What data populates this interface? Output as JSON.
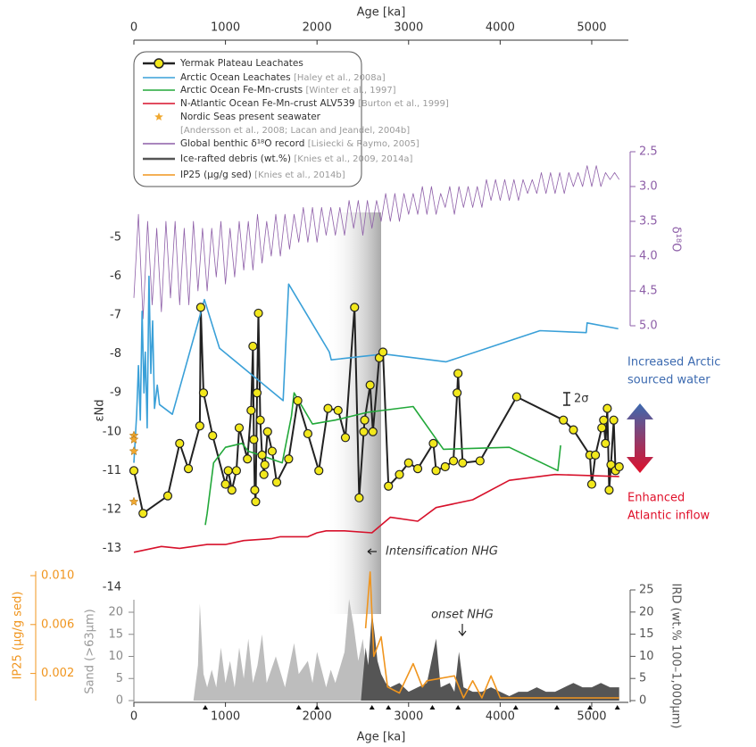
{
  "chart_data": [
    {
      "type": "line",
      "x_label": "Age [ka]",
      "xlim": [
        0,
        5400
      ],
      "xticks": [
        0,
        1000,
        2000,
        3000,
        4000,
        5000
      ],
      "y_label": "εNd",
      "ylim": [
        -14,
        -5
      ],
      "yticks": [
        -5,
        -6,
        -7,
        -8,
        -9,
        -10,
        -11,
        -12,
        -13,
        -14
      ],
      "y2_label": "δ¹⁸O",
      "y2lim": [
        5,
        2.5
      ],
      "y2ticks": [
        2.5,
        {
          "value": 3,
          "label": "3.0"
        },
        3.5,
        {
          "value": 4,
          "label": "4.0"
        },
        4.5,
        {
          "value": 5,
          "label": "5.0"
        }
      ],
      "grid": false,
      "highlight": [
        2100,
        2700
      ],
      "annotation": "Intensification NHG",
      "error_label": "2σ",
      "arctic_label": [
        "Increased Arctic",
        "sourced water"
      ],
      "atlantic_label": [
        "Enhanced",
        "Atlantic inflow"
      ],
      "series": [
        {
          "name": "Yermak Plateau Leachates",
          "color": "#222222",
          "marker": "circle",
          "marker_color": "#f2e81c",
          "x": [
            0,
            100,
            370,
            500,
            595,
            720,
            730,
            760,
            860,
            1000,
            1030,
            1070,
            1120,
            1150,
            1240,
            1280,
            1300,
            1310,
            1320,
            1330,
            1345,
            1360,
            1380,
            1400,
            1420,
            1430,
            1460,
            1510,
            1560,
            1690,
            1790,
            1900,
            2020,
            2120,
            2230,
            2310,
            2410,
            2460,
            2510,
            2520,
            2580,
            2610,
            2680,
            2720,
            2780,
            2900,
            3000,
            3100,
            3270,
            3300,
            3400,
            3490,
            3530,
            3540,
            3590,
            3780,
            4180,
            4690,
            4800,
            4980,
            5000,
            5040,
            5110,
            5130,
            5150,
            5170,
            5190,
            5210,
            5240,
            5260,
            5300
          ],
          "values": [
            -11.0,
            -12.1,
            -11.65,
            -10.3,
            -10.95,
            -9.85,
            -6.8,
            -9.0,
            -10.1,
            -11.35,
            -11.0,
            -11.5,
            -11.0,
            -9.9,
            -10.7,
            -9.45,
            -7.8,
            -10.2,
            -11.5,
            -11.8,
            -9.0,
            -6.95,
            -9.7,
            -10.6,
            -11.1,
            -10.85,
            -10.0,
            -10.5,
            -11.3,
            -10.7,
            -9.2,
            -10.05,
            -11.0,
            -9.4,
            -9.45,
            -10.15,
            -6.8,
            -11.7,
            -10.0,
            -9.7,
            -8.8,
            -10.0,
            -8.1,
            -7.95,
            -11.4,
            -11.1,
            -10.8,
            -10.95,
            -10.3,
            -11.0,
            -10.9,
            -10.75,
            -9.0,
            -8.5,
            -10.8,
            -10.75,
            -9.1,
            -9.7,
            -9.95,
            -10.6,
            -11.35,
            -10.6,
            -9.9,
            -9.7,
            -10.3,
            -9.4,
            -11.5,
            -10.85,
            -9.7,
            -11.0,
            -10.9
          ]
        },
        {
          "name": "Arctic Ocean Leachates",
          "ref": "[Haley et al., 2008a]",
          "color": "#3aa0d8",
          "x": [
            0,
            30,
            50,
            70,
            90,
            110,
            125,
            145,
            165,
            185,
            205,
            225,
            255,
            280,
            420,
            770,
            935,
            1630,
            1690,
            2135,
            2155,
            2730,
            3410,
            4435,
            4940,
            4950,
            5290
          ],
          "values": [
            -10.8,
            -9.55,
            -8.3,
            -9.7,
            -6.9,
            -9.0,
            -7.95,
            -9.9,
            -6.0,
            -8.5,
            -7.15,
            -9.4,
            -8.8,
            -9.3,
            -9.55,
            -6.6,
            -7.85,
            -9.2,
            -6.2,
            -7.95,
            -8.15,
            -8.0,
            -8.2,
            -7.4,
            -7.45,
            -7.2,
            -7.35
          ]
        },
        {
          "name": "Arctic Ocean Fe-Mn-crusts",
          "ref": "[Winter et al., 1997]",
          "color": "#22a83a",
          "x": [
            780,
            800,
            870,
            1000,
            1180,
            1250,
            1380,
            1620,
            1720,
            1750,
            1950,
            2200,
            2550,
            3050,
            3380,
            4100,
            4630,
            4660
          ],
          "values": [
            -12.4,
            -12.1,
            -10.8,
            -10.4,
            -10.3,
            -10.5,
            -10.6,
            -10.8,
            -9.6,
            -9.0,
            -9.8,
            -9.7,
            -9.5,
            -9.35,
            -10.45,
            -10.4,
            -11.0,
            -10.35
          ]
        },
        {
          "name": "N-Atlantic Ocean Fe-Mn-crust ALV539",
          "ref": "[Burton et al., 1999]",
          "color": "#d7112b",
          "x": [
            0,
            300,
            500,
            800,
            1000,
            1200,
            1500,
            1600,
            1900,
            2000,
            2100,
            2300,
            2600,
            2800,
            3100,
            3300,
            3700,
            4100,
            4600,
            5300
          ],
          "values": [
            -13.1,
            -12.95,
            -13.0,
            -12.9,
            -12.9,
            -12.8,
            -12.75,
            -12.7,
            -12.7,
            -12.6,
            -12.55,
            -12.55,
            -12.6,
            -12.2,
            -12.3,
            -11.95,
            -11.75,
            -11.25,
            -11.1,
            -11.15
          ]
        },
        {
          "name": "Nordic Seas present seawater",
          "ref": "[Andersson et al., 2008; Lacan and Jeandel, 2004b]",
          "color": "#f0a830",
          "marker": "star",
          "line": false,
          "x": [
            0,
            0,
            0,
            0
          ],
          "values": [
            -10.1,
            -10.2,
            -10.5,
            -11.8
          ]
        },
        {
          "name": "Global benthic δ¹⁸O record",
          "ref": "[Lisiecki & Raymo, 2005]",
          "color": "#8e5fa8",
          "axis": "y2",
          "x": [
            0,
            50,
            100,
            150,
            200,
            250,
            300,
            350,
            400,
            450,
            500,
            550,
            600,
            650,
            700,
            750,
            800,
            850,
            900,
            950,
            1000,
            1050,
            1100,
            1150,
            1200,
            1250,
            1300,
            1350,
            1400,
            1450,
            1500,
            1550,
            1600,
            1650,
            1700,
            1750,
            1800,
            1850,
            1900,
            1950,
            2000,
            2050,
            2100,
            2150,
            2200,
            2250,
            2300,
            2350,
            2400,
            2450,
            2500,
            2550,
            2600,
            2650,
            2700,
            2750,
            2800,
            2850,
            2900,
            2950,
            3000,
            3050,
            3100,
            3150,
            3200,
            3250,
            3300,
            3350,
            3400,
            3450,
            3500,
            3550,
            3600,
            3650,
            3700,
            3750,
            3800,
            3850,
            3900,
            3950,
            4000,
            4050,
            4100,
            4150,
            4200,
            4250,
            4300,
            4350,
            4400,
            4450,
            4500,
            4550,
            4600,
            4650,
            4700,
            4750,
            4800,
            4850,
            4900,
            4950,
            5000,
            5050,
            5100,
            5150,
            5200,
            5250,
            5300
          ],
          "values": [
            4.6,
            3.4,
            4.9,
            3.5,
            4.7,
            3.6,
            4.8,
            3.5,
            4.6,
            3.5,
            4.7,
            3.6,
            4.7,
            3.5,
            4.5,
            3.6,
            4.5,
            3.6,
            4.3,
            3.5,
            4.4,
            3.6,
            4.3,
            3.5,
            4.2,
            3.5,
            4.2,
            3.4,
            4.1,
            3.5,
            4.0,
            3.4,
            4.0,
            3.4,
            3.9,
            3.4,
            3.8,
            3.3,
            3.8,
            3.3,
            3.8,
            3.3,
            3.7,
            3.3,
            3.7,
            3.3,
            3.7,
            3.2,
            3.6,
            3.2,
            3.7,
            3.2,
            3.6,
            3.2,
            3.5,
            3.1,
            3.5,
            3.1,
            3.5,
            3.1,
            3.4,
            3.1,
            3.4,
            3.0,
            3.4,
            3.0,
            3.4,
            3.1,
            3.3,
            3.0,
            3.4,
            3.0,
            3.3,
            3.0,
            3.3,
            3.0,
            3.3,
            2.9,
            3.2,
            2.9,
            3.2,
            2.9,
            3.2,
            2.9,
            3.2,
            2.9,
            3.1,
            2.9,
            3.1,
            2.8,
            3.1,
            2.8,
            3.1,
            2.8,
            3.1,
            2.8,
            3.0,
            2.8,
            3.0,
            2.7,
            3.0,
            2.7,
            3.0,
            2.8,
            2.9,
            2.8,
            2.9
          ]
        }
      ]
    },
    {
      "type": "area",
      "x_label": "Age [ka]",
      "xlim": [
        0,
        5400
      ],
      "xticks": [
        0,
        1000,
        2000,
        3000,
        4000,
        5000
      ],
      "y_label": "Sand (>63µm)",
      "ylim": [
        0,
        20
      ],
      "yticks": [
        0,
        5,
        10,
        15,
        20
      ],
      "y2_label": "IRD (wt.% 100–1,000µm)",
      "y2lim": [
        0,
        25
      ],
      "y2ticks": [
        0,
        5,
        10,
        15,
        20,
        25
      ],
      "y3_label": "IP25 (µg/g sed)",
      "y3lim": [
        0,
        0.01
      ],
      "y3ticks": [
        0.002,
        0.006,
        {
          "value": 0.01,
          "label": "0.010"
        }
      ],
      "annotation": "onset NHG",
      "sample_ages": [
        780,
        1800,
        2000,
        2600,
        2780,
        3260,
        3540,
        4170,
        4620,
        4980,
        5280
      ],
      "series": [
        {
          "name": "Sand",
          "legend": false,
          "color": "#bdbdbd",
          "fill": true,
          "x": [
            650,
            700,
            720,
            760,
            800,
            850,
            900,
            950,
            1000,
            1050,
            1100,
            1150,
            1200,
            1250,
            1300,
            1350,
            1400,
            1450,
            1550,
            1650,
            1750,
            1800,
            1900,
            1950,
            2000,
            2100,
            2150,
            2200,
            2300,
            2350,
            2400,
            2450,
            2500,
            2550,
            2600,
            2700
          ],
          "values": [
            0,
            8,
            22,
            6,
            3,
            7,
            3,
            12,
            4,
            9,
            3,
            12,
            5,
            14,
            4,
            8,
            15,
            4,
            10,
            3,
            13,
            6,
            9,
            4,
            11,
            3,
            7,
            4,
            11,
            23,
            17,
            9,
            14,
            4,
            3,
            0
          ]
        },
        {
          "name": "Ice-rafted debris (wt.%)",
          "ref": "[Knies et al., 2009, 2014a]",
          "color": "#555555",
          "fill": true,
          "axis": "y2",
          "x": [
            2480,
            2500,
            2530,
            2560,
            2600,
            2630,
            2660,
            2700,
            2750,
            2800,
            2900,
            3000,
            3100,
            3200,
            3300,
            3350,
            3450,
            3500,
            3550,
            3600,
            3700,
            3800,
            3900,
            4000,
            4100,
            4200,
            4300,
            4400,
            4500,
            4600,
            4700,
            4800,
            4900,
            5000,
            5100,
            5200,
            5300
          ],
          "values": [
            0,
            5,
            12,
            8,
            20,
            15,
            9,
            6,
            4,
            3,
            4,
            2,
            3,
            4,
            14,
            3,
            4,
            2,
            11,
            3,
            2,
            2,
            3,
            2,
            1,
            2,
            2,
            3,
            2,
            2,
            3,
            4,
            3,
            3,
            4,
            3,
            3
          ]
        },
        {
          "name": "IP25 (µg/g sed)",
          "ref": "[Knies et al., 2014b]",
          "color": "#f0951e",
          "axis": "y3",
          "x": [
            2530,
            2580,
            2620,
            2700,
            2770,
            2900,
            3050,
            3150,
            3200,
            3500,
            3600,
            3700,
            3800,
            3900,
            4000,
            5300
          ],
          "values": [
            0.0057,
            0.0103,
            0.0034,
            0.005,
            0.0009,
            0.0004,
            0.0028,
            0.0009,
            0.0014,
            0.0018,
            0,
            0.0014,
            0,
            0.0018,
            0,
            0
          ]
        }
      ]
    }
  ]
}
